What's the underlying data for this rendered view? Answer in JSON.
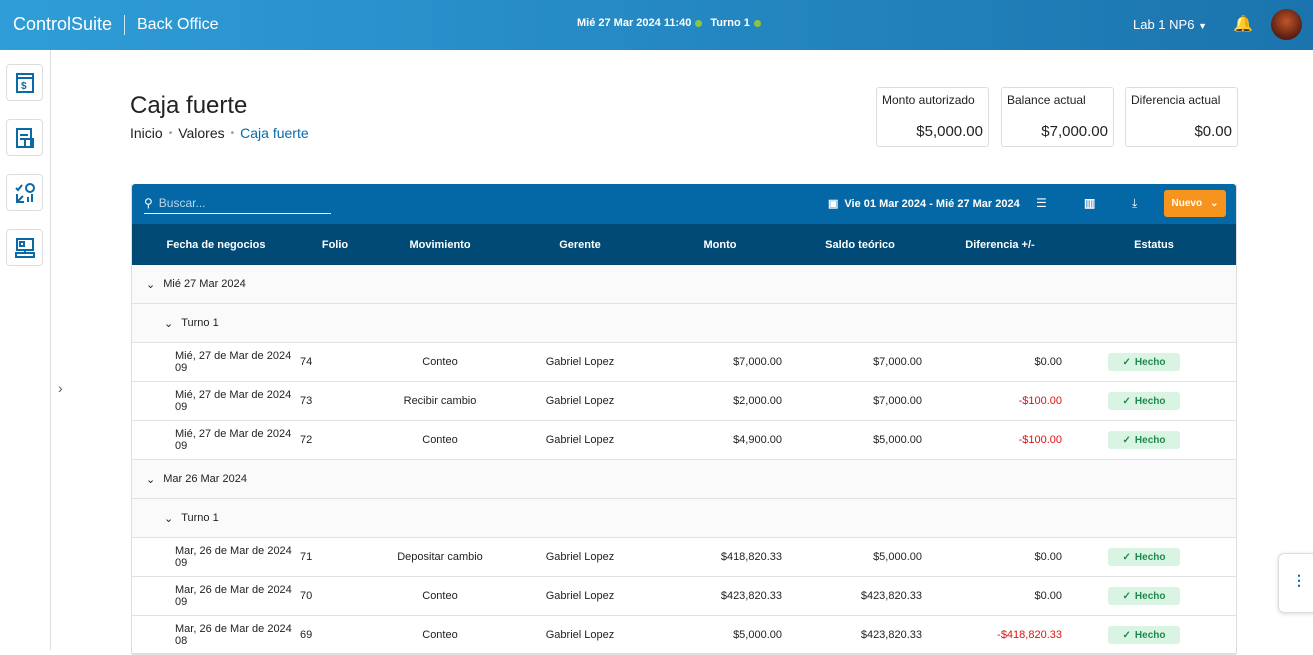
{
  "header": {
    "brand": "ControlSuite",
    "app": "Back Office",
    "datetime": "Mié 27 Mar 2024 11:40",
    "shift": "Turno 1",
    "location": "Lab 1 NP6"
  },
  "page": {
    "title": "Caja fuerte",
    "breadcrumb": [
      "Inicio",
      "Valores",
      "Caja fuerte"
    ]
  },
  "cards": [
    {
      "label": "Monto autorizado",
      "value": "$5,000.00"
    },
    {
      "label": "Balance actual",
      "value": "$7,000.00"
    },
    {
      "label": "Diferencia actual",
      "value": "$0.00"
    }
  ],
  "toolbar": {
    "search_placeholder": "Buscar...",
    "date_range": "Vie 01 Mar 2024 - Mié 27 Mar 2024",
    "new_label": "Nuevo"
  },
  "columns": [
    "Fecha de negocios",
    "Folio",
    "Movimiento",
    "Gerente",
    "Monto",
    "Saldo teórico",
    "Diferencia +/-",
    "Estatus"
  ],
  "groups": [
    {
      "day": "Mié 27 Mar 2024",
      "shift": "Turno 1",
      "rows": [
        [
          "Mié, 27 de Mar de 2024 09",
          "74",
          "Conteo",
          "Gabriel Lopez",
          "$7,000.00",
          "$7,000.00",
          "$0.00",
          "Hecho"
        ],
        [
          "Mié, 27 de Mar de 2024 09",
          "73",
          "Recibir cambio",
          "Gabriel Lopez",
          "$2,000.00",
          "$7,000.00",
          "-$100.00",
          "Hecho"
        ],
        [
          "Mié, 27 de Mar de 2024 09",
          "72",
          "Conteo",
          "Gabriel Lopez",
          "$4,900.00",
          "$5,000.00",
          "-$100.00",
          "Hecho"
        ]
      ]
    },
    {
      "day": "Mar 26 Mar 2024",
      "shift": "Turno 1",
      "rows": [
        [
          "Mar, 26 de Mar de 2024 09",
          "71",
          "Depositar cambio",
          "Gabriel Lopez",
          "$418,820.33",
          "$5,000.00",
          "$0.00",
          "Hecho"
        ],
        [
          "Mar, 26 de Mar de 2024 09",
          "70",
          "Conteo",
          "Gabriel Lopez",
          "$423,820.33",
          "$423,820.33",
          "$0.00",
          "Hecho"
        ],
        [
          "Mar, 26 de Mar de 2024 08",
          "69",
          "Conteo",
          "Gabriel Lopez",
          "$5,000.00",
          "$423,820.33",
          "-$418,820.33",
          "Hecho"
        ]
      ]
    }
  ],
  "colors": {
    "accent": "#0568a6",
    "header_row": "#004a75",
    "new_button": "#f7941d",
    "negative": "#e01010",
    "status_bg": "#d9f4e3",
    "status_fg": "#1f8a4d"
  }
}
